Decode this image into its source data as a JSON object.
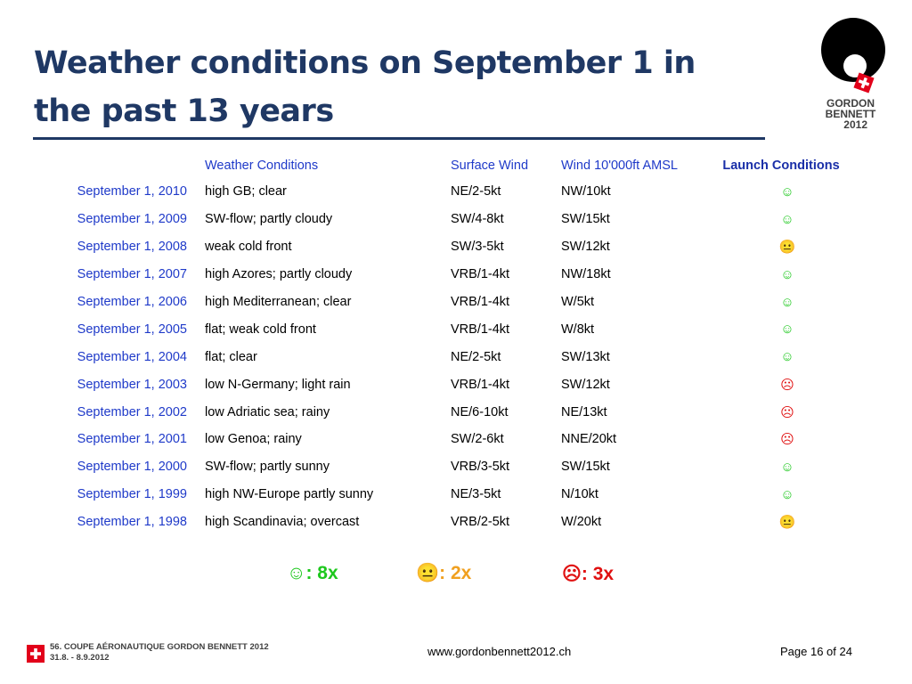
{
  "slide": {
    "title_line1": "Weather conditions on September 1 in",
    "title_line2": "the past 13 years"
  },
  "logo": {
    "line1": "GORDON",
    "line2": "BENNETT",
    "line3": "2012"
  },
  "table": {
    "headers": {
      "weather": "Weather Conditions",
      "surface": "Surface Wind",
      "wind": "Wind 10'000ft AMSL",
      "launch": "Launch Conditions"
    },
    "rows": [
      {
        "date": "September 1, 2010",
        "weather": "high GB; clear",
        "surface": "NE/2-5kt",
        "wind": "NW/10kt",
        "launch": "☺",
        "status": "good"
      },
      {
        "date": "September 1, 2009",
        "weather": "SW-flow; partly cloudy",
        "surface": "SW/4-8kt",
        "wind": "SW/15kt",
        "launch": "☺",
        "status": "good"
      },
      {
        "date": "September 1, 2008",
        "weather": "weak cold front",
        "surface": "SW/3-5kt",
        "wind": "SW/12kt",
        "launch": "😐",
        "status": "neutral"
      },
      {
        "date": "September 1, 2007",
        "weather": "high Azores; partly cloudy",
        "surface": "VRB/1-4kt",
        "wind": "NW/18kt",
        "launch": "☺",
        "status": "good"
      },
      {
        "date": "September 1, 2006",
        "weather": "high Mediterranean; clear",
        "surface": "VRB/1-4kt",
        "wind": "W/5kt",
        "launch": "☺",
        "status": "good"
      },
      {
        "date": "September 1, 2005",
        "weather": "flat; weak cold front",
        "surface": "VRB/1-4kt",
        "wind": "W/8kt",
        "launch": "☺",
        "status": "good"
      },
      {
        "date": "September 1, 2004",
        "weather": "flat; clear",
        "surface": "NE/2-5kt",
        "wind": "SW/13kt",
        "launch": "☺",
        "status": "good"
      },
      {
        "date": "September 1, 2003",
        "weather": "low N-Germany; light rain",
        "surface": "VRB/1-4kt",
        "wind": "SW/12kt",
        "launch": "☹",
        "status": "bad"
      },
      {
        "date": "September 1, 2002",
        "weather": "low Adriatic sea; rainy",
        "surface": "NE/6-10kt",
        "wind": "NE/13kt",
        "launch": "☹",
        "status": "bad"
      },
      {
        "date": "September 1, 2001",
        "weather": "low Genoa; rainy",
        "surface": "SW/2-6kt",
        "wind": "NNE/20kt",
        "launch": "☹",
        "status": "bad"
      },
      {
        "date": "September 1, 2000",
        "weather": "SW-flow; partly sunny",
        "surface": "VRB/3-5kt",
        "wind": "SW/15kt",
        "launch": "☺",
        "status": "good"
      },
      {
        "date": "September 1, 1999",
        "weather": "high NW-Europe partly sunny",
        "surface": "NE/3-5kt",
        "wind": "N/10kt",
        "launch": "☺",
        "status": "good"
      },
      {
        "date": "September 1, 1998",
        "weather": "high Scandinavia; overcast",
        "surface": "VRB/2-5kt",
        "wind": "W/20kt",
        "launch": "😐",
        "status": "neutral"
      }
    ]
  },
  "summary": {
    "happy": "☺: 8x",
    "neutral": "😐: 2x",
    "sad": "☹: 3x"
  },
  "footer": {
    "event_line1": "56. COUPE AÉRONAUTIQUE GORDON BENNETT 2012",
    "event_line2": "31.8. - 8.9.2012",
    "url": "www.gordonbennett2012.ch",
    "page": "Page 16 of 24"
  },
  "colors": {
    "title": "#1f3864",
    "link_blue": "#1f3ac9",
    "good": "#1ec81e",
    "neutral": "#f0a020",
    "bad": "#e01010",
    "swiss_red": "#e2001a"
  }
}
